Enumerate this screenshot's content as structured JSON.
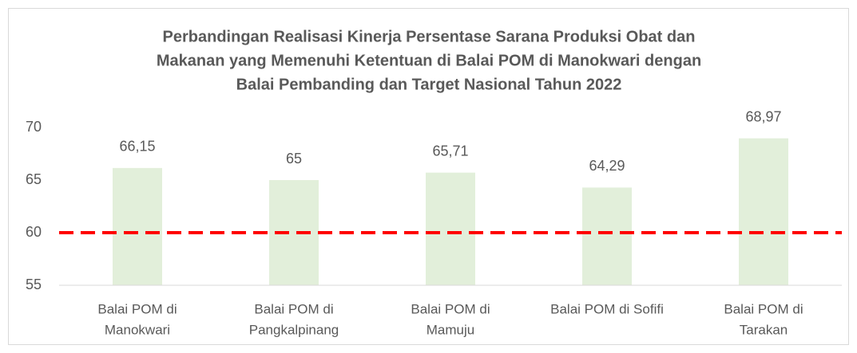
{
  "chart_data": {
    "type": "bar",
    "title": [
      "Perbandingan Realisasi Kinerja Persentase Sarana Produksi Obat dan",
      "Makanan yang Memenuhi Ketentuan di Balai POM di Manokwari dengan",
      "Balai Pembanding dan Target Nasional Tahun 2022"
    ],
    "categories": [
      [
        "Balai POM di",
        "Manokwari"
      ],
      [
        "Balai POM di",
        "Pangkalpinang"
      ],
      [
        "Balai POM di",
        "Mamuju"
      ],
      [
        "Balai POM di Sofifi"
      ],
      [
        "Balai POM di",
        "Tarakan"
      ]
    ],
    "values": [
      66.15,
      65,
      65.71,
      64.29,
      68.97
    ],
    "value_labels": [
      "66,15",
      "65",
      "65,71",
      "64,29",
      "68,97"
    ],
    "color": "#e2efda",
    "target_line": {
      "value": 60,
      "color": "#ff0000"
    },
    "ylim": [
      55,
      70
    ],
    "yticks": [
      55,
      60,
      65,
      70
    ],
    "grid": false
  }
}
